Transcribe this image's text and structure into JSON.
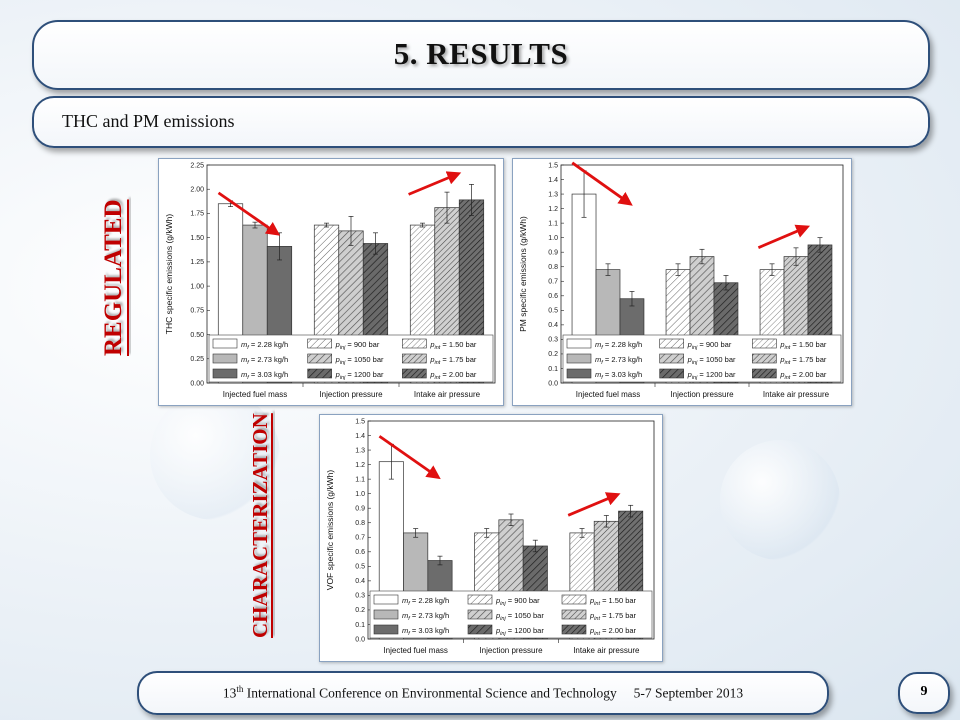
{
  "slide": {
    "title": "5. RESULTS",
    "subtitle": "THC and PM emissions",
    "footer_sup": "th",
    "footer_num": "13",
    "footer_text": " International Conference on Environmental Science and Technology     5-7 September 2013",
    "page_number": "9",
    "label_regulated": "REGULATED",
    "label_characterization": "CHARACTERIZATION"
  },
  "chart_data": [
    {
      "type": "bar",
      "id": "thc",
      "ylabel": "THC specific emissions (g/kWh)",
      "ylim": [
        0,
        2.25
      ],
      "yticks": [
        "0.00",
        "0.25",
        "0.50",
        "0.75",
        "1.00",
        "1.25",
        "1.50",
        "1.75",
        "2.00",
        "2.25"
      ],
      "groups": [
        "Injected fuel mass",
        "Injection pressure",
        "Intake air pressure"
      ],
      "values": [
        [
          1.85,
          1.63,
          1.41
        ],
        [
          1.63,
          1.57,
          1.44
        ],
        [
          1.63,
          1.81,
          1.89
        ]
      ],
      "errors": [
        [
          0.03,
          0.03,
          0.14
        ],
        [
          0.02,
          0.15,
          0.11
        ],
        [
          0.02,
          0.16,
          0.16
        ]
      ],
      "trend": [
        "down",
        "none",
        "up"
      ]
    },
    {
      "type": "bar",
      "id": "pm",
      "ylabel": "PM specific emissions (g/kWh)",
      "ylim": [
        0,
        1.5
      ],
      "yticks": [
        "0.0",
        "0.1",
        "0.2",
        "0.3",
        "0.4",
        "0.5",
        "0.6",
        "0.7",
        "0.8",
        "0.9",
        "1.0",
        "1.1",
        "1.2",
        "1.3",
        "1.4",
        "1.5"
      ],
      "groups": [
        "Injected fuel mass",
        "Injection pressure",
        "Intake air pressure"
      ],
      "values": [
        [
          1.3,
          0.78,
          0.58
        ],
        [
          0.78,
          0.87,
          0.69
        ],
        [
          0.78,
          0.87,
          0.95
        ]
      ],
      "errors": [
        [
          0.16,
          0.04,
          0.05
        ],
        [
          0.04,
          0.05,
          0.05
        ],
        [
          0.04,
          0.06,
          0.05
        ]
      ],
      "trend": [
        "down",
        "none",
        "up"
      ]
    },
    {
      "type": "bar",
      "id": "vof",
      "ylabel": "VOF specific emissions (g/kWh)",
      "ylim": [
        0,
        1.5
      ],
      "yticks": [
        "0.0",
        "0.1",
        "0.2",
        "0.3",
        "0.4",
        "0.5",
        "0.6",
        "0.7",
        "0.8",
        "0.9",
        "1.0",
        "1.1",
        "1.2",
        "1.3",
        "1.4",
        "1.5"
      ],
      "groups": [
        "Injected fuel mass",
        "Injection pressure",
        "Intake air pressure"
      ],
      "values": [
        [
          1.22,
          0.73,
          0.54
        ],
        [
          0.73,
          0.82,
          0.64
        ],
        [
          0.73,
          0.81,
          0.88
        ]
      ],
      "errors": [
        [
          0.12,
          0.03,
          0.03
        ],
        [
          0.03,
          0.04,
          0.04
        ],
        [
          0.03,
          0.04,
          0.04
        ]
      ],
      "trend": [
        "down",
        "none",
        "up"
      ]
    }
  ],
  "legend": {
    "col1": [
      {
        "var": "m",
        "sub": "f",
        "text": " = 2.28 kg/h"
      },
      {
        "var": "m",
        "sub": "f",
        "text": " = 2.73 kg/h"
      },
      {
        "var": "m",
        "sub": "f",
        "text": " = 3.03 kg/h"
      }
    ],
    "col2": [
      {
        "var": "p",
        "sub": "inj",
        "text": " =   900 bar"
      },
      {
        "var": "p",
        "sub": "inj",
        "text": " = 1050 bar"
      },
      {
        "var": "p",
        "sub": "inj",
        "text": " = 1200 bar"
      }
    ],
    "col3": [
      {
        "var": "p",
        "sub": "int",
        "text": " = 1.50 bar"
      },
      {
        "var": "p",
        "sub": "int",
        "text": " = 1.75 bar"
      },
      {
        "var": "p",
        "sub": "int",
        "text": " = 2.00 bar"
      }
    ]
  },
  "colors": {
    "level1": "#ffffff",
    "level2": "#b8b8b8",
    "level3": "#6c6c6c",
    "arrow": "#e01010",
    "accent": "#c00000"
  }
}
